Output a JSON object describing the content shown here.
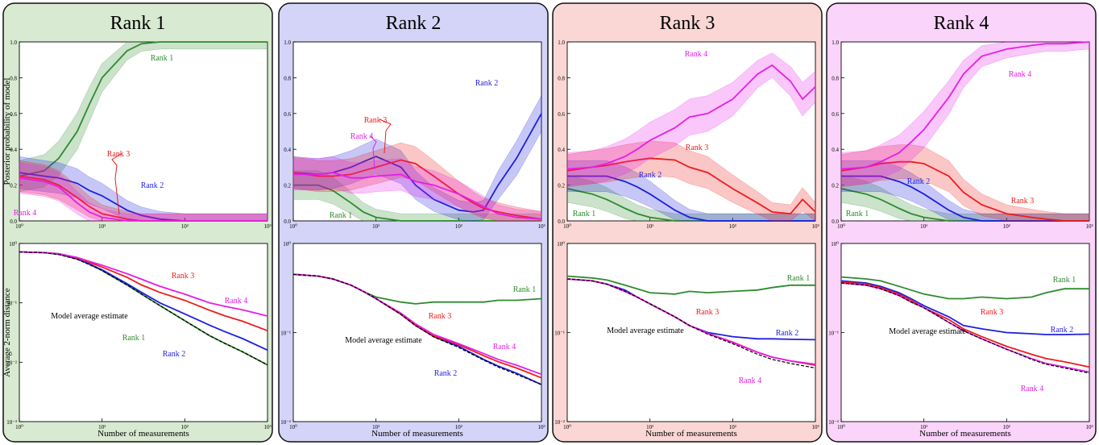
{
  "shared": {
    "ylabel_top": "Posterior probability of model",
    "ylabel_bottom": "Average 2-norm distance",
    "xlabel": "Number of measurements",
    "x_ticks": [
      "10⁰",
      "10¹",
      "10²",
      "10³"
    ],
    "y_ticks_top": [
      "0.0",
      "0.2",
      "0.4",
      "0.6",
      "0.8",
      "1.0"
    ],
    "y_ticks_bottom_left": [
      "10⁰",
      "10⁻¹",
      "10⁻²",
      "10⁻³"
    ],
    "y_ticks_bottom_other": [
      "10⁰",
      "10⁻¹",
      "10⁻²"
    ]
  },
  "colors": {
    "rank1": "#2e8b2e",
    "rank2": "#1f1fe0",
    "rank3": "#ee1c1c",
    "rank4": "#e61ee6",
    "model_average": "#000000",
    "panel_bg": [
      "#d8ead2",
      "#d4d4f8",
      "#fad7d4",
      "#fad4fa"
    ]
  },
  "chart_data": [
    {
      "type": "line",
      "title": "Rank 1",
      "xscale": "log",
      "top": {
        "ylabel": "Posterior probability of model",
        "xlim": [
          1,
          1000
        ],
        "ylim": [
          0,
          1
        ],
        "x": [
          1,
          2,
          3,
          5,
          7,
          10,
          20,
          30,
          50,
          100,
          200,
          300,
          500,
          1000
        ],
        "series": [
          {
            "name": "Rank 1",
            "values": [
              0.25,
              0.28,
              0.35,
              0.5,
              0.65,
              0.8,
              0.95,
              0.99,
              1.0,
              1.0,
              1.0,
              1.0,
              1.0,
              1.0
            ]
          },
          {
            "name": "Rank 2",
            "values": [
              0.27,
              0.25,
              0.24,
              0.21,
              0.17,
              0.14,
              0.06,
              0.03,
              0.01,
              0.0,
              0.0,
              0.0,
              0.0,
              0.0
            ]
          },
          {
            "name": "Rank 3",
            "values": [
              0.25,
              0.23,
              0.2,
              0.13,
              0.08,
              0.04,
              0.01,
              0.0,
              0.0,
              0.0,
              0.0,
              0.0,
              0.0,
              0.0
            ]
          },
          {
            "name": "Rank 4",
            "values": [
              0.24,
              0.22,
              0.19,
              0.1,
              0.05,
              0.02,
              0.0,
              0.0,
              0.0,
              0.0,
              0.0,
              0.0,
              0.0,
              0.0
            ]
          }
        ],
        "annotations": [
          "Rank 1",
          "Rank 2",
          "Rank 3",
          "Rank 4"
        ]
      },
      "bottom": {
        "ylabel": "Average 2-norm distance",
        "xlabel": "Number of measurements",
        "yscale": "log",
        "xlim": [
          1,
          1000
        ],
        "ylim": [
          0.001,
          1
        ],
        "x": [
          1,
          2,
          3,
          5,
          7,
          10,
          20,
          30,
          50,
          100,
          200,
          300,
          500,
          1000
        ],
        "series": [
          {
            "name": "Rank 1",
            "values": [
              0.72,
              0.7,
              0.66,
              0.55,
              0.45,
              0.35,
              0.2,
              0.14,
              0.09,
              0.05,
              0.028,
              0.021,
              0.015,
              0.009
            ]
          },
          {
            "name": "Rank 2",
            "values": [
              0.72,
              0.7,
              0.66,
              0.55,
              0.45,
              0.36,
              0.21,
              0.15,
              0.1,
              0.065,
              0.042,
              0.033,
              0.025,
              0.016
            ]
          },
          {
            "name": "Rank 3",
            "values": [
              0.72,
              0.7,
              0.67,
              0.57,
              0.48,
              0.4,
              0.27,
              0.2,
              0.15,
              0.11,
              0.075,
              0.061,
              0.049,
              0.034
            ]
          },
          {
            "name": "Rank 4",
            "values": [
              0.72,
              0.7,
              0.67,
              0.58,
              0.5,
              0.43,
              0.31,
              0.25,
              0.19,
              0.14,
              0.1,
              0.088,
              0.076,
              0.06
            ]
          },
          {
            "name": "Model average estimate",
            "values": [
              0.72,
              0.7,
              0.65,
              0.54,
              0.44,
              0.35,
              0.2,
              0.14,
              0.09,
              0.05,
              0.028,
              0.021,
              0.015,
              0.009
            ]
          }
        ],
        "annotations": [
          "Rank 3",
          "Rank 4",
          "Model average estimate",
          "Rank 1",
          "Rank 2"
        ]
      }
    },
    {
      "type": "line",
      "title": "Rank 2",
      "xscale": "log",
      "top": {
        "ylabel": "",
        "xlim": [
          1,
          1000
        ],
        "ylim": [
          0,
          1
        ],
        "x": [
          1,
          2,
          3,
          5,
          7,
          10,
          20,
          30,
          50,
          100,
          150,
          200,
          300,
          500,
          1000
        ],
        "series": [
          {
            "name": "Rank 1",
            "values": [
              0.2,
              0.2,
              0.17,
              0.1,
              0.05,
              0.02,
              0.0,
              0.0,
              0.0,
              0.0,
              0.0,
              0.0,
              0.0,
              0.0,
              0.0
            ]
          },
          {
            "name": "Rank 2",
            "values": [
              0.27,
              0.26,
              0.27,
              0.3,
              0.33,
              0.36,
              0.3,
              0.2,
              0.12,
              0.06,
              0.05,
              0.06,
              0.2,
              0.35,
              0.6
            ]
          },
          {
            "name": "Rank 3",
            "values": [
              0.27,
              0.25,
              0.25,
              0.26,
              0.28,
              0.3,
              0.34,
              0.32,
              0.25,
              0.15,
              0.1,
              0.07,
              0.05,
              0.03,
              0.01
            ]
          },
          {
            "name": "Rank 4",
            "values": [
              0.26,
              0.26,
              0.27,
              0.24,
              0.24,
              0.25,
              0.26,
              0.22,
              0.2,
              0.15,
              0.11,
              0.08,
              0.04,
              0.02,
              0.01
            ]
          }
        ],
        "annotations": [
          "Rank 2",
          "Rank 3",
          "Rank 4",
          "Rank 1"
        ]
      },
      "bottom": {
        "ylabel": "",
        "xlabel": "Number of measurements",
        "yscale": "log",
        "xlim": [
          1,
          1000
        ],
        "ylim": [
          0.01,
          1
        ],
        "x": [
          1,
          2,
          3,
          5,
          7,
          10,
          20,
          30,
          50,
          100,
          200,
          300,
          500,
          1000
        ],
        "series": [
          {
            "name": "Rank 1",
            "values": [
              0.45,
              0.43,
              0.4,
              0.34,
              0.29,
              0.25,
              0.22,
              0.21,
              0.22,
              0.22,
              0.22,
              0.23,
              0.23,
              0.24
            ]
          },
          {
            "name": "Rank 2",
            "values": [
              0.45,
              0.43,
              0.4,
              0.34,
              0.29,
              0.24,
              0.16,
              0.12,
              0.09,
              0.07,
              0.05,
              0.042,
              0.035,
              0.026
            ]
          },
          {
            "name": "Rank 3",
            "values": [
              0.45,
              0.43,
              0.4,
              0.34,
              0.29,
              0.24,
              0.16,
              0.12,
              0.092,
              0.073,
              0.055,
              0.047,
              0.04,
              0.031
            ]
          },
          {
            "name": "Rank 4",
            "values": [
              0.45,
              0.43,
              0.4,
              0.34,
              0.29,
              0.24,
              0.165,
              0.125,
              0.095,
              0.075,
              0.058,
              0.05,
              0.043,
              0.034
            ]
          },
          {
            "name": "Model average estimate",
            "values": [
              0.45,
              0.43,
              0.4,
              0.34,
              0.29,
              0.24,
              0.16,
              0.12,
              0.089,
              0.068,
              0.049,
              0.041,
              0.034,
              0.026
            ]
          }
        ],
        "annotations": [
          "Rank 1",
          "Rank 3",
          "Model average estimate",
          "Rank 4",
          "Rank 2"
        ]
      }
    },
    {
      "type": "line",
      "title": "Rank 3",
      "xscale": "log",
      "top": {
        "ylabel": "",
        "xlim": [
          1,
          1000
        ],
        "ylim": [
          0,
          1
        ],
        "x": [
          1,
          2,
          3,
          5,
          7,
          10,
          20,
          30,
          50,
          100,
          200,
          300,
          500,
          700,
          1000
        ],
        "series": [
          {
            "name": "Rank 1",
            "values": [
              0.18,
              0.15,
              0.12,
              0.07,
              0.04,
              0.02,
              0.0,
              0.0,
              0.0,
              0.0,
              0.0,
              0.0,
              0.0,
              0.0,
              0.0
            ]
          },
          {
            "name": "Rank 2",
            "values": [
              0.25,
              0.25,
              0.25,
              0.22,
              0.19,
              0.15,
              0.06,
              0.02,
              0.0,
              0.0,
              0.0,
              0.0,
              0.0,
              0.0,
              0.0
            ]
          },
          {
            "name": "Rank 3",
            "values": [
              0.28,
              0.3,
              0.31,
              0.33,
              0.34,
              0.35,
              0.34,
              0.3,
              0.27,
              0.18,
              0.1,
              0.05,
              0.04,
              0.12,
              0.05
            ]
          },
          {
            "name": "Rank 4",
            "values": [
              0.29,
              0.3,
              0.32,
              0.36,
              0.4,
              0.45,
              0.52,
              0.58,
              0.6,
              0.68,
              0.82,
              0.87,
              0.78,
              0.68,
              0.75
            ]
          }
        ],
        "annotations": [
          "Rank 4",
          "Rank 3",
          "Rank 2",
          "Rank 1"
        ]
      },
      "bottom": {
        "ylabel": "",
        "xlabel": "Number of measurements",
        "yscale": "log",
        "xlim": [
          1,
          1000
        ],
        "ylim": [
          0.01,
          1
        ],
        "x": [
          1,
          2,
          3,
          5,
          7,
          10,
          20,
          30,
          50,
          100,
          200,
          300,
          500,
          1000
        ],
        "series": [
          {
            "name": "Rank 1",
            "values": [
              0.43,
              0.41,
              0.39,
              0.34,
              0.31,
              0.28,
              0.27,
              0.29,
              0.28,
              0.29,
              0.3,
              0.32,
              0.34,
              0.34
            ]
          },
          {
            "name": "Rank 2",
            "values": [
              0.4,
              0.38,
              0.35,
              0.3,
              0.25,
              0.21,
              0.15,
              0.12,
              0.1,
              0.09,
              0.085,
              0.085,
              0.084,
              0.083
            ]
          },
          {
            "name": "Rank 3",
            "values": [
              0.4,
              0.38,
              0.35,
              0.29,
              0.25,
              0.21,
              0.15,
              0.12,
              0.098,
              0.078,
              0.06,
              0.053,
              0.048,
              0.043
            ]
          },
          {
            "name": "Rank 4",
            "values": [
              0.4,
              0.38,
              0.35,
              0.29,
              0.25,
              0.21,
              0.15,
              0.12,
              0.098,
              0.077,
              0.06,
              0.053,
              0.048,
              0.044
            ]
          },
          {
            "name": "Model average estimate",
            "values": [
              0.4,
              0.38,
              0.35,
              0.29,
              0.25,
              0.21,
              0.15,
              0.12,
              0.096,
              0.075,
              0.057,
              0.05,
              0.045,
              0.04
            ]
          }
        ],
        "annotations": [
          "Rank 1",
          "Rank 3",
          "Model average estimate",
          "Rank 2",
          "Rank 4"
        ]
      }
    },
    {
      "type": "line",
      "title": "Rank 4",
      "xscale": "log",
      "top": {
        "ylabel": "",
        "xlim": [
          1,
          1000
        ],
        "ylim": [
          0,
          1
        ],
        "x": [
          1,
          2,
          3,
          5,
          7,
          10,
          20,
          30,
          50,
          100,
          200,
          300,
          500,
          1000
        ],
        "series": [
          {
            "name": "Rank 1",
            "values": [
              0.18,
              0.15,
              0.12,
              0.07,
              0.04,
              0.02,
              0.0,
              0.0,
              0.0,
              0.0,
              0.0,
              0.0,
              0.0,
              0.0
            ]
          },
          {
            "name": "Rank 2",
            "values": [
              0.25,
              0.25,
              0.25,
              0.22,
              0.19,
              0.15,
              0.06,
              0.02,
              0.0,
              0.0,
              0.0,
              0.0,
              0.0,
              0.0
            ]
          },
          {
            "name": "Rank 3",
            "values": [
              0.28,
              0.3,
              0.32,
              0.33,
              0.33,
              0.32,
              0.25,
              0.16,
              0.09,
              0.04,
              0.02,
              0.01,
              0.0,
              0.0
            ]
          },
          {
            "name": "Rank 4",
            "values": [
              0.29,
              0.3,
              0.33,
              0.38,
              0.44,
              0.51,
              0.69,
              0.82,
              0.92,
              0.96,
              0.98,
              0.99,
              0.99,
              1.0
            ]
          }
        ],
        "annotations": [
          "Rank 4",
          "Rank 2",
          "Rank 3",
          "Rank 1"
        ]
      },
      "bottom": {
        "ylabel": "",
        "xlabel": "Number of measurements",
        "yscale": "log",
        "xlim": [
          1,
          1000
        ],
        "ylim": [
          0.01,
          1
        ],
        "x": [
          1,
          2,
          3,
          5,
          7,
          10,
          20,
          30,
          50,
          100,
          200,
          300,
          500,
          1000
        ],
        "series": [
          {
            "name": "Rank 1",
            "values": [
              0.42,
              0.4,
              0.38,
              0.33,
              0.3,
              0.27,
              0.24,
              0.24,
              0.25,
              0.24,
              0.25,
              0.28,
              0.31,
              0.31
            ]
          },
          {
            "name": "Rank 2",
            "values": [
              0.38,
              0.36,
              0.33,
              0.28,
              0.24,
              0.2,
              0.15,
              0.12,
              0.11,
              0.1,
              0.097,
              0.095,
              0.095,
              0.096
            ]
          },
          {
            "name": "Rank 3",
            "values": [
              0.37,
              0.35,
              0.32,
              0.27,
              0.23,
              0.19,
              0.14,
              0.11,
              0.09,
              0.07,
              0.057,
              0.051,
              0.047,
              0.041
            ]
          },
          {
            "name": "Rank 4",
            "values": [
              0.36,
              0.34,
              0.31,
              0.26,
              0.22,
              0.19,
              0.13,
              0.105,
              0.085,
              0.065,
              0.051,
              0.045,
              0.041,
              0.036
            ]
          },
          {
            "name": "Model average estimate",
            "values": [
              0.36,
              0.34,
              0.31,
              0.26,
              0.22,
              0.19,
              0.13,
              0.105,
              0.085,
              0.065,
              0.05,
              0.044,
              0.04,
              0.035
            ]
          }
        ],
        "annotations": [
          "Rank 1",
          "Rank 3",
          "Model average estimate",
          "Rank 2",
          "Rank 4"
        ]
      }
    }
  ]
}
